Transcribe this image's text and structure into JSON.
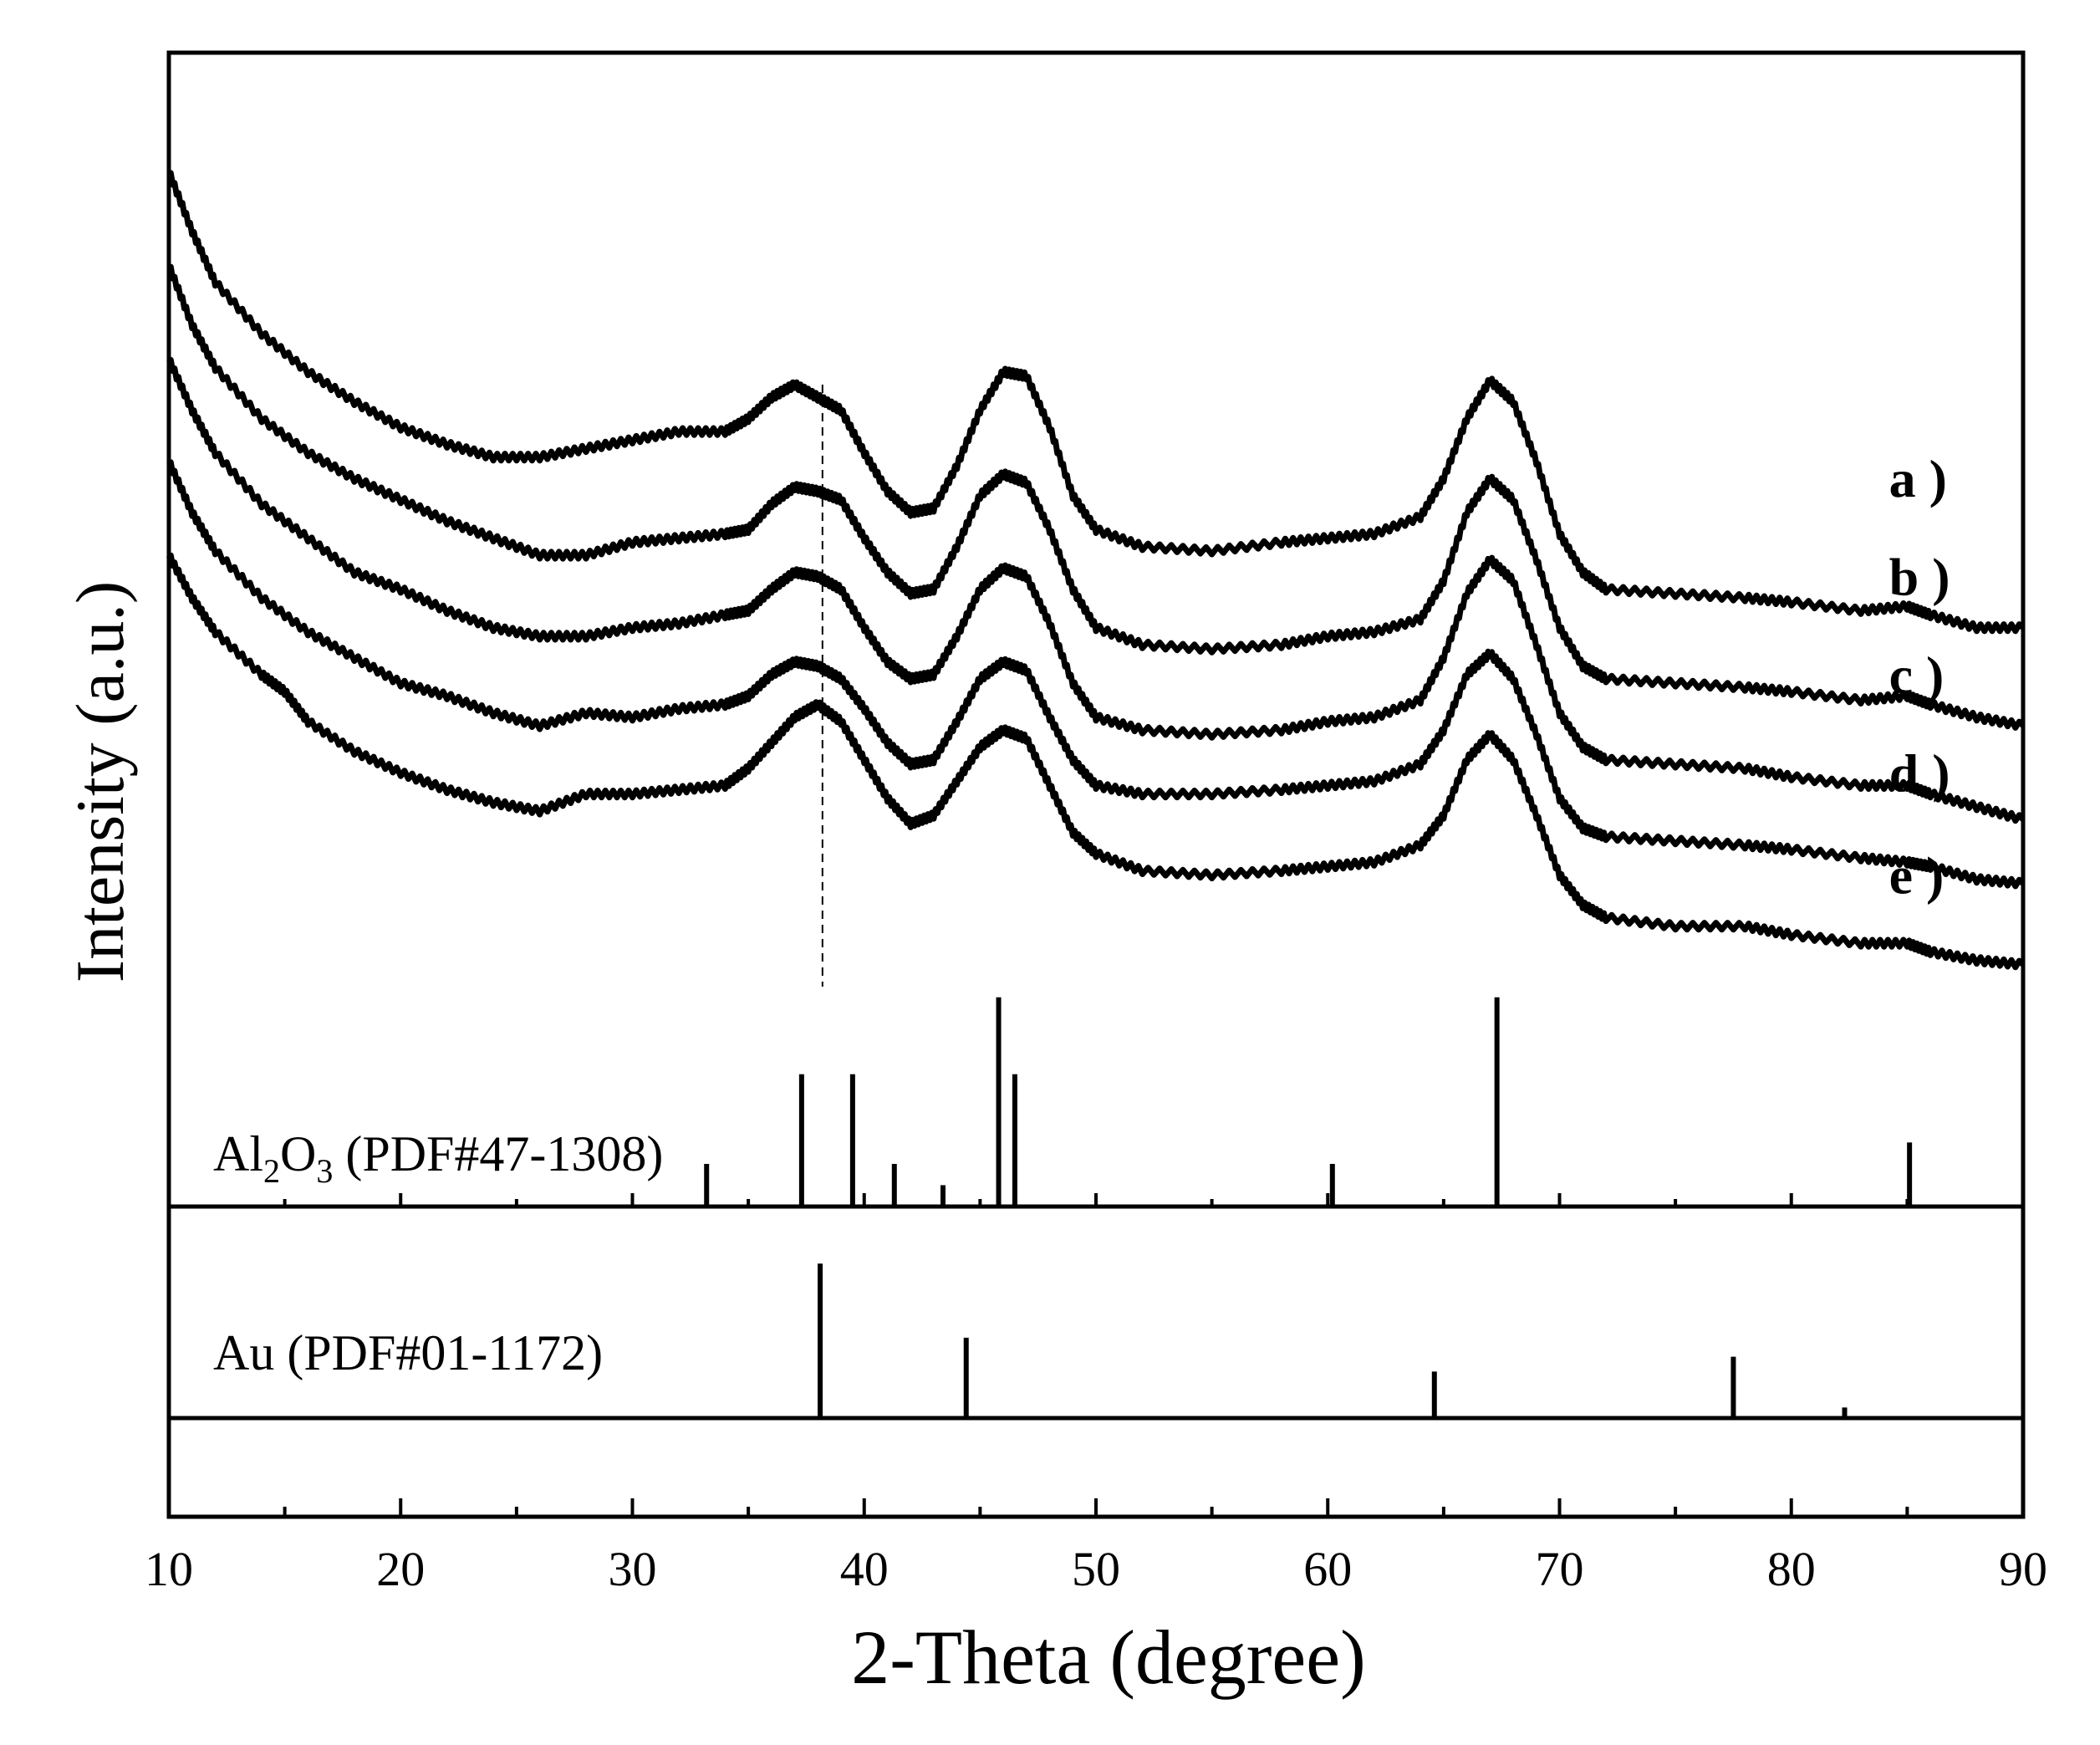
{
  "chart_data": {
    "type": "line",
    "xlabel": "2-Theta (degree)",
    "ylabel": "Intensity (a.u.)",
    "xlim": [
      10,
      90
    ],
    "x_ticks": [
      10,
      20,
      30,
      40,
      50,
      60,
      70,
      80,
      90
    ],
    "x_minor_step": 5,
    "y_ticks_visible": false,
    "grid": false,
    "reference_line_x": 38.2,
    "reference_line_style": "dashed",
    "series": [
      {
        "name": "a )",
        "label_x": 84,
        "label_intensity": 0.64,
        "points": [
          [
            10,
            1.0
          ],
          [
            11,
            0.93
          ],
          [
            12,
            0.87
          ],
          [
            14,
            0.81
          ],
          [
            16,
            0.765
          ],
          [
            18,
            0.73
          ],
          [
            20,
            0.7
          ],
          [
            22,
            0.68
          ],
          [
            24,
            0.665
          ],
          [
            26,
            0.665
          ],
          [
            28,
            0.675
          ],
          [
            30,
            0.685
          ],
          [
            32,
            0.695
          ],
          [
            34,
            0.695
          ],
          [
            35,
            0.71
          ],
          [
            36,
            0.735
          ],
          [
            37,
            0.75
          ],
          [
            38,
            0.735
          ],
          [
            39,
            0.72
          ],
          [
            40,
            0.67
          ],
          [
            41,
            0.625
          ],
          [
            42,
            0.6
          ],
          [
            43,
            0.605
          ],
          [
            44,
            0.655
          ],
          [
            45,
            0.72
          ],
          [
            46,
            0.765
          ],
          [
            47,
            0.76
          ],
          [
            48,
            0.7
          ],
          [
            49,
            0.62
          ],
          [
            50,
            0.58
          ],
          [
            52,
            0.56
          ],
          [
            55,
            0.555
          ],
          [
            58,
            0.565
          ],
          [
            60,
            0.57
          ],
          [
            62,
            0.575
          ],
          [
            64,
            0.595
          ],
          [
            65,
            0.64
          ],
          [
            66,
            0.71
          ],
          [
            67,
            0.755
          ],
          [
            68,
            0.73
          ],
          [
            69,
            0.66
          ],
          [
            70,
            0.575
          ],
          [
            71,
            0.53
          ],
          [
            72,
            0.51
          ],
          [
            75,
            0.505
          ],
          [
            78,
            0.5
          ],
          [
            80,
            0.495
          ],
          [
            83,
            0.485
          ],
          [
            85,
            0.49
          ],
          [
            86,
            0.48
          ],
          [
            88,
            0.465
          ],
          [
            90,
            0.465
          ]
        ]
      },
      {
        "name": "b )",
        "label_x": 84,
        "label_intensity": 0.525,
        "points": [
          [
            10,
            0.89
          ],
          [
            11,
            0.82
          ],
          [
            12,
            0.77
          ],
          [
            14,
            0.71
          ],
          [
            16,
            0.67
          ],
          [
            18,
            0.64
          ],
          [
            20,
            0.615
          ],
          [
            22,
            0.59
          ],
          [
            24,
            0.57
          ],
          [
            26,
            0.55
          ],
          [
            28,
            0.55
          ],
          [
            30,
            0.565
          ],
          [
            32,
            0.57
          ],
          [
            34,
            0.575
          ],
          [
            35,
            0.58
          ],
          [
            36,
            0.61
          ],
          [
            37,
            0.63
          ],
          [
            38,
            0.625
          ],
          [
            39,
            0.615
          ],
          [
            40,
            0.57
          ],
          [
            41,
            0.53
          ],
          [
            42,
            0.505
          ],
          [
            43,
            0.51
          ],
          [
            44,
            0.56
          ],
          [
            45,
            0.62
          ],
          [
            46,
            0.645
          ],
          [
            47,
            0.635
          ],
          [
            48,
            0.58
          ],
          [
            49,
            0.51
          ],
          [
            50,
            0.465
          ],
          [
            52,
            0.445
          ],
          [
            55,
            0.44
          ],
          [
            58,
            0.445
          ],
          [
            60,
            0.455
          ],
          [
            62,
            0.46
          ],
          [
            64,
            0.475
          ],
          [
            65,
            0.52
          ],
          [
            66,
            0.6
          ],
          [
            67,
            0.64
          ],
          [
            68,
            0.615
          ],
          [
            69,
            0.545
          ],
          [
            70,
            0.465
          ],
          [
            71,
            0.42
          ],
          [
            72,
            0.405
          ],
          [
            75,
            0.4
          ],
          [
            78,
            0.395
          ],
          [
            80,
            0.39
          ],
          [
            83,
            0.38
          ],
          [
            85,
            0.385
          ],
          [
            86,
            0.375
          ],
          [
            88,
            0.36
          ],
          [
            90,
            0.35
          ]
        ]
      },
      {
        "name": "c )",
        "label_x": 84,
        "label_intensity": 0.41,
        "points": [
          [
            10,
            0.78
          ],
          [
            11,
            0.72
          ],
          [
            12,
            0.67
          ],
          [
            14,
            0.61
          ],
          [
            16,
            0.57
          ],
          [
            18,
            0.53
          ],
          [
            20,
            0.51
          ],
          [
            22,
            0.485
          ],
          [
            24,
            0.465
          ],
          [
            26,
            0.455
          ],
          [
            28,
            0.455
          ],
          [
            30,
            0.465
          ],
          [
            32,
            0.47
          ],
          [
            34,
            0.48
          ],
          [
            35,
            0.485
          ],
          [
            36,
            0.51
          ],
          [
            37,
            0.53
          ],
          [
            38,
            0.525
          ],
          [
            39,
            0.51
          ],
          [
            40,
            0.465
          ],
          [
            41,
            0.425
          ],
          [
            42,
            0.405
          ],
          [
            43,
            0.41
          ],
          [
            44,
            0.455
          ],
          [
            45,
            0.51
          ],
          [
            46,
            0.535
          ],
          [
            47,
            0.525
          ],
          [
            48,
            0.47
          ],
          [
            49,
            0.4
          ],
          [
            50,
            0.36
          ],
          [
            52,
            0.345
          ],
          [
            55,
            0.34
          ],
          [
            58,
            0.345
          ],
          [
            60,
            0.355
          ],
          [
            62,
            0.36
          ],
          [
            64,
            0.38
          ],
          [
            65,
            0.43
          ],
          [
            66,
            0.505
          ],
          [
            67,
            0.545
          ],
          [
            68,
            0.52
          ],
          [
            69,
            0.445
          ],
          [
            70,
            0.365
          ],
          [
            71,
            0.325
          ],
          [
            72,
            0.31
          ],
          [
            75,
            0.305
          ],
          [
            78,
            0.3
          ],
          [
            80,
            0.29
          ],
          [
            83,
            0.28
          ],
          [
            85,
            0.28
          ],
          [
            86,
            0.27
          ],
          [
            88,
            0.255
          ],
          [
            90,
            0.24
          ]
        ]
      },
      {
        "name": "d )",
        "label_x": 84,
        "label_intensity": 0.295,
        "points": [
          [
            10,
            0.66
          ],
          [
            11,
            0.6
          ],
          [
            12,
            0.555
          ],
          [
            14,
            0.5
          ],
          [
            16,
            0.46
          ],
          [
            18,
            0.43
          ],
          [
            20,
            0.4
          ],
          [
            22,
            0.385
          ],
          [
            24,
            0.365
          ],
          [
            26,
            0.35
          ],
          [
            28,
            0.365
          ],
          [
            30,
            0.36
          ],
          [
            32,
            0.37
          ],
          [
            34,
            0.375
          ],
          [
            35,
            0.385
          ],
          [
            36,
            0.41
          ],
          [
            37,
            0.425
          ],
          [
            38,
            0.42
          ],
          [
            39,
            0.405
          ],
          [
            40,
            0.37
          ],
          [
            41,
            0.33
          ],
          [
            42,
            0.305
          ],
          [
            43,
            0.31
          ],
          [
            44,
            0.355
          ],
          [
            45,
            0.405
          ],
          [
            46,
            0.425
          ],
          [
            47,
            0.415
          ],
          [
            48,
            0.36
          ],
          [
            49,
            0.31
          ],
          [
            50,
            0.28
          ],
          [
            52,
            0.27
          ],
          [
            55,
            0.27
          ],
          [
            58,
            0.275
          ],
          [
            60,
            0.28
          ],
          [
            62,
            0.285
          ],
          [
            64,
            0.305
          ],
          [
            65,
            0.345
          ],
          [
            66,
            0.41
          ],
          [
            67,
            0.435
          ],
          [
            68,
            0.405
          ],
          [
            69,
            0.34
          ],
          [
            70,
            0.265
          ],
          [
            71,
            0.23
          ],
          [
            72,
            0.22
          ],
          [
            75,
            0.215
          ],
          [
            78,
            0.21
          ],
          [
            80,
            0.205
          ],
          [
            83,
            0.195
          ],
          [
            85,
            0.19
          ],
          [
            86,
            0.185
          ],
          [
            88,
            0.17
          ],
          [
            90,
            0.165
          ]
        ]
      },
      {
        "name": "e )",
        "label_x": 84,
        "label_intensity": 0.175,
        "points": [
          [
            10,
            0.55
          ],
          [
            11,
            0.5
          ],
          [
            12,
            0.46
          ],
          [
            14,
            0.41
          ],
          [
            15,
            0.39
          ],
          [
            16,
            0.355
          ],
          [
            18,
            0.32
          ],
          [
            20,
            0.295
          ],
          [
            22,
            0.275
          ],
          [
            24,
            0.26
          ],
          [
            26,
            0.25
          ],
          [
            28,
            0.27
          ],
          [
            30,
            0.27
          ],
          [
            32,
            0.275
          ],
          [
            34,
            0.28
          ],
          [
            35,
            0.3
          ],
          [
            36,
            0.33
          ],
          [
            37,
            0.36
          ],
          [
            38,
            0.375
          ],
          [
            39,
            0.355
          ],
          [
            40,
            0.31
          ],
          [
            41,
            0.265
          ],
          [
            42,
            0.235
          ],
          [
            43,
            0.245
          ],
          [
            44,
            0.285
          ],
          [
            45,
            0.325
          ],
          [
            46,
            0.345
          ],
          [
            47,
            0.335
          ],
          [
            48,
            0.28
          ],
          [
            49,
            0.225
          ],
          [
            50,
            0.2
          ],
          [
            52,
            0.18
          ],
          [
            55,
            0.175
          ],
          [
            58,
            0.18
          ],
          [
            60,
            0.185
          ],
          [
            62,
            0.19
          ],
          [
            64,
            0.21
          ],
          [
            65,
            0.245
          ],
          [
            66,
            0.31
          ],
          [
            67,
            0.34
          ],
          [
            68,
            0.31
          ],
          [
            69,
            0.245
          ],
          [
            70,
            0.175
          ],
          [
            71,
            0.14
          ],
          [
            72,
            0.125
          ],
          [
            75,
            0.115
          ],
          [
            78,
            0.115
          ],
          [
            80,
            0.105
          ],
          [
            83,
            0.095
          ],
          [
            85,
            0.095
          ],
          [
            86,
            0.085
          ],
          [
            88,
            0.075
          ],
          [
            90,
            0.07
          ]
        ]
      }
    ],
    "reference_panels": [
      {
        "label_main": "Al",
        "label_sub1": "2",
        "label_mid": "O",
        "label_sub2": "3",
        "label_rest": " (PDF#47-1308)",
        "sticks": [
          [
            33.2,
            0.1
          ],
          [
            37.3,
            0.31
          ],
          [
            39.5,
            0.31
          ],
          [
            41.3,
            0.1
          ],
          [
            43.4,
            0.05
          ],
          [
            45.8,
            0.49
          ],
          [
            46.5,
            0.31
          ],
          [
            60.2,
            0.1
          ],
          [
            67.3,
            0.49
          ],
          [
            85.1,
            0.15
          ]
        ]
      },
      {
        "label_main": "Au (PDF#01-1172)",
        "sticks": [
          [
            38.1,
            0.73
          ],
          [
            44.4,
            0.38
          ],
          [
            64.6,
            0.22
          ],
          [
            77.5,
            0.29
          ],
          [
            82.3,
            0.05
          ]
        ]
      }
    ]
  }
}
